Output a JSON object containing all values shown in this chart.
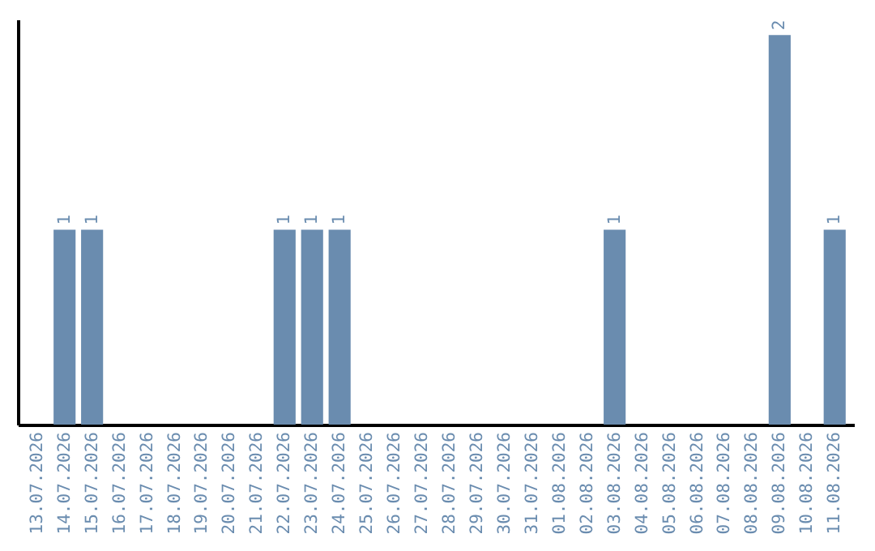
{
  "chart_data": {
    "type": "bar",
    "categories": [
      "13.07.2026",
      "14.07.2026",
      "15.07.2026",
      "16.07.2026",
      "17.07.2026",
      "18.07.2026",
      "19.07.2026",
      "20.07.2026",
      "21.07.2026",
      "22.07.2026",
      "23.07.2026",
      "24.07.2026",
      "25.07.2026",
      "26.07.2026",
      "27.07.2026",
      "28.07.2026",
      "29.07.2026",
      "30.07.2026",
      "31.07.2026",
      "01.08.2026",
      "02.08.2026",
      "03.08.2026",
      "04.08.2026",
      "05.08.2026",
      "06.08.2026",
      "07.08.2026",
      "08.08.2026",
      "09.08.2026",
      "10.08.2026",
      "11.08.2026"
    ],
    "values": [
      0,
      1,
      1,
      0,
      0,
      0,
      0,
      0,
      0,
      1,
      1,
      1,
      0,
      0,
      0,
      0,
      0,
      0,
      0,
      0,
      0,
      1,
      0,
      0,
      0,
      0,
      0,
      2,
      0,
      1
    ],
    "value_labels": [
      null,
      "1",
      "1",
      null,
      null,
      null,
      null,
      null,
      null,
      "1",
      "1",
      "1",
      null,
      null,
      null,
      null,
      null,
      null,
      null,
      null,
      null,
      "1",
      null,
      null,
      null,
      null,
      null,
      "2",
      null,
      "1"
    ],
    "color": "#6a8caf",
    "tick_labels": "x",
    "grid": false
  }
}
